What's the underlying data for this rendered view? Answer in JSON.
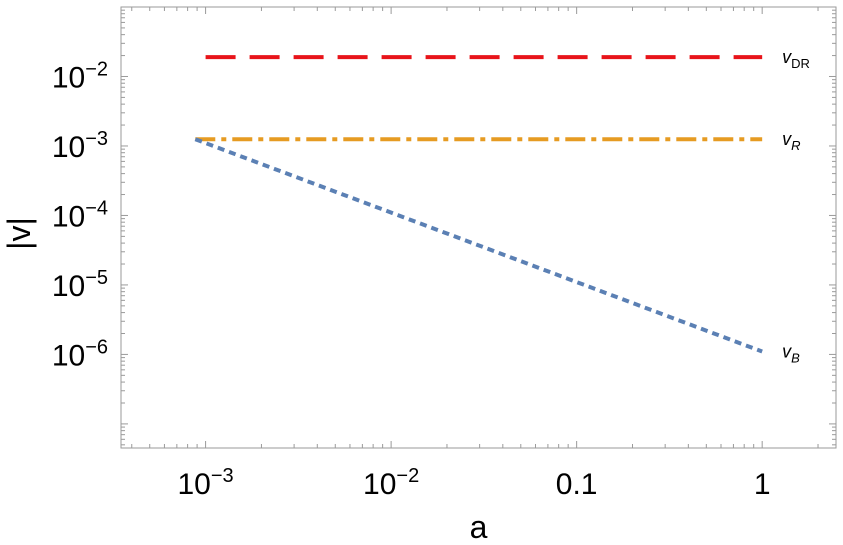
{
  "chart_data": {
    "type": "line",
    "xlabel": "a",
    "ylabel": "|v|",
    "xscale": "log",
    "yscale": "log",
    "xlim": [
      0.00035,
      2.5
    ],
    "ylim": [
      4.5e-08,
      0.1
    ],
    "grid": false,
    "xticks": [
      {
        "value": 0.001,
        "base": "10",
        "exp": "−3"
      },
      {
        "value": 0.01,
        "base": "10",
        "exp": "−2"
      },
      {
        "value": 0.1,
        "base": "0.1",
        "exp": ""
      },
      {
        "value": 1,
        "base": "1",
        "exp": ""
      }
    ],
    "yticks": [
      {
        "value": 0.01,
        "base": "10",
        "exp": "−2"
      },
      {
        "value": 0.001,
        "base": "10",
        "exp": "−3"
      },
      {
        "value": 0.0001,
        "base": "10",
        "exp": "−4"
      },
      {
        "value": 1e-05,
        "base": "10",
        "exp": "−5"
      },
      {
        "value": 1e-06,
        "base": "10",
        "exp": "−6"
      }
    ],
    "series": [
      {
        "label_main": "v",
        "label_sub": "DR",
        "sub_italic": false,
        "color": "#e8141a",
        "style": "dashed",
        "x": [
          0.001,
          1
        ],
        "y": [
          0.019,
          0.019
        ]
      },
      {
        "label_main": "v",
        "label_sub": "R",
        "sub_italic": true,
        "color": "#e69b22",
        "style": "dashdot",
        "x": [
          0.00088,
          1
        ],
        "y": [
          0.00125,
          0.00125
        ]
      },
      {
        "label_main": "v",
        "label_sub": "B",
        "sub_italic": true,
        "color": "#5b80b4",
        "style": "dotted",
        "x": [
          0.00088,
          1
        ],
        "y": [
          0.00125,
          1.1e-06
        ]
      }
    ]
  }
}
